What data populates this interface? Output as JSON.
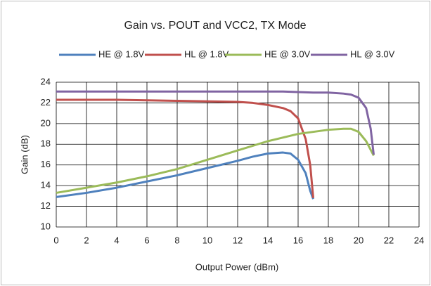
{
  "chart_data": {
    "type": "line",
    "title": "Gain vs. POUT and VCC2, TX Mode",
    "x_label": "Output Power (dBm)",
    "y_label": "Gain (dB)",
    "xlim": [
      0,
      24
    ],
    "xticks": [
      0,
      2,
      4,
      6,
      8,
      10,
      12,
      14,
      16,
      18,
      20,
      22,
      24
    ],
    "ylim": [
      10,
      24
    ],
    "yticks": [
      10,
      12,
      14,
      16,
      18,
      20,
      22,
      24
    ],
    "grid": true,
    "legend": "top",
    "series": [
      {
        "name": "HE @ 1.8V",
        "color": "#4f81bd",
        "x": [
          0,
          2,
          4,
          6,
          8,
          10,
          12,
          13,
          14,
          15,
          15.5,
          16,
          16.5,
          16.8,
          17
        ],
        "values": [
          12.9,
          13.3,
          13.8,
          14.4,
          15.0,
          15.7,
          16.4,
          16.8,
          17.1,
          17.2,
          17.1,
          16.5,
          15.2,
          13.5,
          12.7
        ]
      },
      {
        "name": "HL @ 1.8V",
        "color": "#c0504d",
        "x": [
          0,
          4,
          8,
          12,
          13,
          14,
          15,
          15.5,
          16,
          16.5,
          16.8,
          17
        ],
        "values": [
          22.3,
          22.3,
          22.2,
          22.1,
          22.0,
          21.8,
          21.5,
          21.2,
          20.5,
          18.5,
          16.0,
          12.8
        ]
      },
      {
        "name": "HE @ 3.0V",
        "color": "#9bbb59",
        "x": [
          0,
          2,
          4,
          6,
          8,
          10,
          12,
          14,
          16,
          18,
          19,
          19.5,
          20,
          20.5,
          21
        ],
        "values": [
          13.3,
          13.8,
          14.3,
          14.9,
          15.6,
          16.5,
          17.4,
          18.3,
          19.0,
          19.4,
          19.5,
          19.5,
          19.2,
          18.3,
          16.9
        ]
      },
      {
        "name": "HL @ 3.0V",
        "color": "#8064a2",
        "x": [
          0,
          5,
          10,
          15,
          17,
          18,
          19,
          19.5,
          20,
          20.5,
          20.8,
          21
        ],
        "values": [
          23.1,
          23.1,
          23.1,
          23.1,
          23.0,
          23.0,
          22.9,
          22.8,
          22.5,
          21.5,
          19.5,
          17.0
        ]
      }
    ]
  }
}
